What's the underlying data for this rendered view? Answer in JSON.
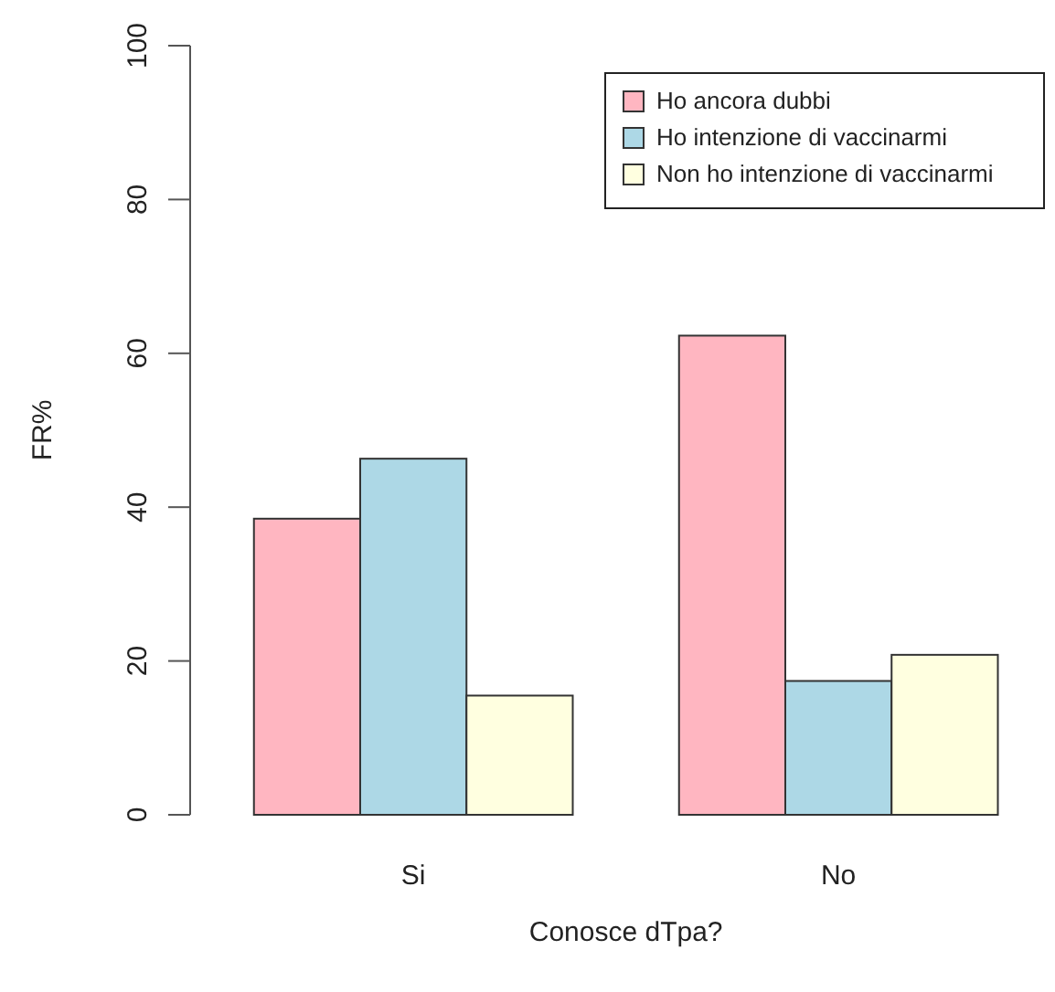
{
  "chart_data": {
    "type": "bar",
    "xlabel": "Conosce dTpa?",
    "ylabel": "FR%",
    "categories": [
      "Si",
      "No"
    ],
    "series": [
      {
        "name": "Ho ancora dubbi",
        "color": "#ffb6c1",
        "values": [
          38.5,
          62.3
        ]
      },
      {
        "name": "Ho intenzione di vaccinarmi",
        "color": "#add8e6",
        "values": [
          46.3,
          17.4
        ]
      },
      {
        "name": "Non ho intenzione di vaccinarmi",
        "color": "#ffffe0",
        "values": [
          15.5,
          20.8
        ]
      }
    ],
    "ylim": [
      0,
      100
    ],
    "yticks": [
      0,
      20,
      40,
      60,
      80,
      100
    ],
    "legend": "top right",
    "grid": false
  }
}
